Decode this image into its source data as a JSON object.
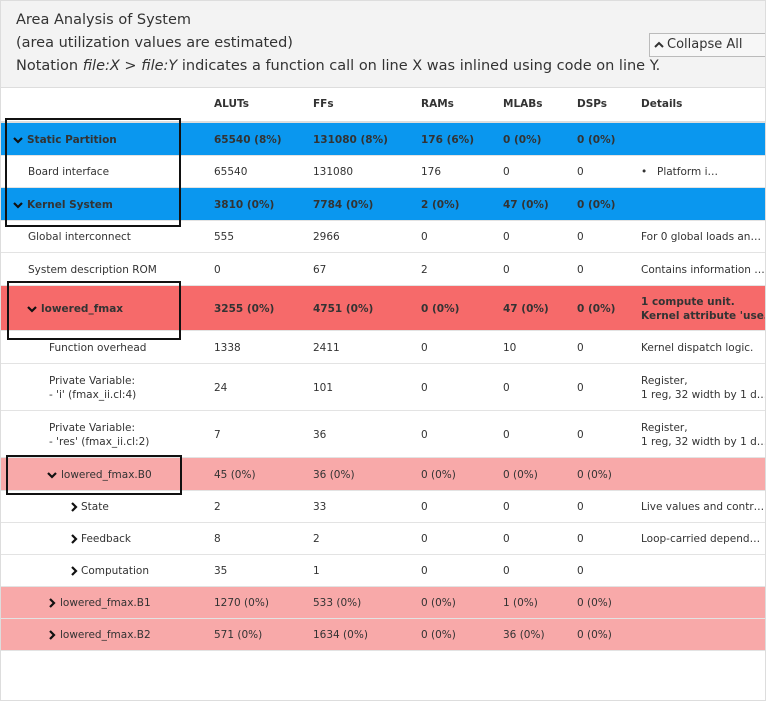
{
  "header": {
    "title": "Area Analysis of System",
    "subtitle": "(area utilization values are estimated)",
    "notation": [
      "Notation ",
      "file:X",
      " > ",
      "file:Y",
      " indicates a function call on line X was inlined using code on line Y."
    ]
  },
  "button": "Collapse All",
  "table": {
    "columns": [
      "ALUTs",
      "FFs",
      "RAMs",
      "MLABs",
      "DSPs",
      "Details"
    ],
    "rows": [
      {
        "name": [
          "Static Partition"
        ],
        "cells": [
          "65540 (8%)",
          "131080 (8%)",
          "176 (6%)",
          "0 (0%)",
          "0 (0%)"
        ]
      },
      {
        "name": [
          "Board interface"
        ],
        "cells": [
          "65540",
          "131080",
          "176",
          "0",
          "0"
        ],
        "details": [
          "Platform i…"
        ]
      },
      {
        "name": [
          "Kernel System"
        ],
        "cells": [
          "3810 (0%)",
          "7784 (0%)",
          "2 (0%)",
          "47 (0%)",
          "0 (0%)"
        ]
      },
      {
        "name": [
          "Global interconnect"
        ],
        "cells": [
          "555",
          "2966",
          "0",
          "0",
          "0"
        ],
        "details": [
          "For 0 global loads an…"
        ]
      },
      {
        "name": [
          "System description ROM"
        ],
        "cells": [
          "0",
          "67",
          "2",
          "0",
          "0"
        ],
        "details": [
          "Contains information …"
        ]
      },
      {
        "name": [
          "lowered_fmax"
        ],
        "cells": [
          "3255 (0%)",
          "4751 (0%)",
          "0 (0%)",
          "47 (0%)",
          "0 (0%)"
        ],
        "details": [
          "1 compute unit.",
          "Kernel attribute 'use…"
        ]
      },
      {
        "name": [
          "Function overhead"
        ],
        "cells": [
          "1338",
          "2411",
          "0",
          "10",
          "0"
        ],
        "details": [
          "Kernel dispatch logic."
        ]
      },
      {
        "name": [
          "Private Variable:",
          "- 'i' (fmax_ii.cl:4)"
        ],
        "cells": [
          "24",
          "101",
          "0",
          "0",
          "0"
        ],
        "details": [
          "Register,",
          "1 reg, 32 width by 1 d…"
        ]
      },
      {
        "name": [
          "Private Variable:",
          "- 'res' (fmax_ii.cl:2)"
        ],
        "cells": [
          "7",
          "36",
          "0",
          "0",
          "0"
        ],
        "details": [
          "Register,",
          "1 reg, 32 width by 1 d…"
        ]
      },
      {
        "name": [
          "lowered_fmax.B0"
        ],
        "cells": [
          "45 (0%)",
          "36 (0%)",
          "0 (0%)",
          "0 (0%)",
          "0 (0%)"
        ]
      },
      {
        "name": [
          "State"
        ],
        "cells": [
          "2",
          "33",
          "0",
          "0",
          "0"
        ],
        "details": [
          "Live values and contr…"
        ]
      },
      {
        "name": [
          "Feedback"
        ],
        "cells": [
          "8",
          "2",
          "0",
          "0",
          "0"
        ],
        "details": [
          "Loop-carried depend…"
        ]
      },
      {
        "name": [
          "Computation"
        ],
        "cells": [
          "35",
          "1",
          "0",
          "0",
          "0"
        ]
      },
      {
        "name": [
          "lowered_fmax.B1"
        ],
        "cells": [
          "1270 (0%)",
          "533 (0%)",
          "0 (0%)",
          "1 (0%)",
          "0 (0%)"
        ]
      },
      {
        "name": [
          "lowered_fmax.B2"
        ],
        "cells": [
          "571 (0%)",
          "1634 (0%)",
          "0 (0%)",
          "36 (0%)",
          "0 (0%)"
        ]
      }
    ]
  }
}
